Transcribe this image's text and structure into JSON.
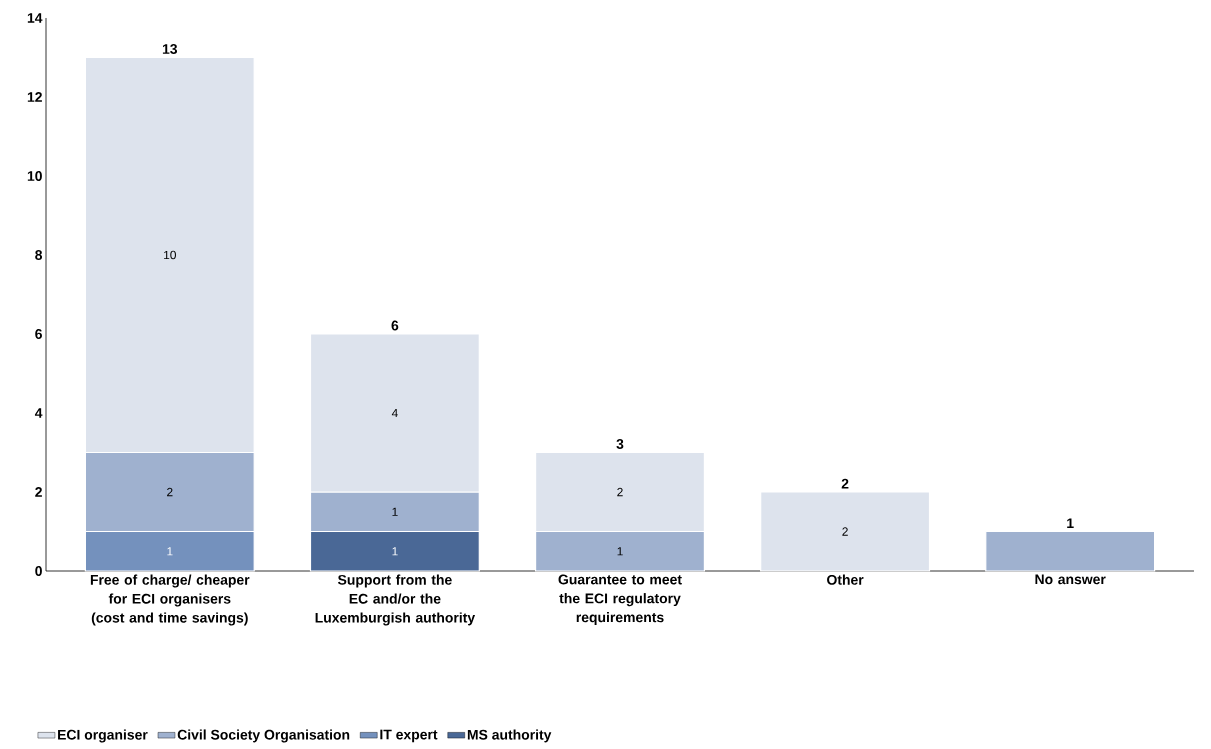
{
  "chart_data": {
    "type": "bar",
    "stacked": true,
    "categories": [
      "Free of charge/ cheaper for ECI organisers (cost and time savings)",
      "Support from the EC and/or the Luxemburgish authority",
      "Guarantee to meet the ECI regulatory requirements",
      "Other",
      "No answer"
    ],
    "series": [
      {
        "name": "MS authority",
        "color": "#4a6896",
        "values": [
          null,
          1,
          null,
          null,
          null
        ],
        "value_labels": [
          null,
          "1",
          null,
          null,
          null
        ]
      },
      {
        "name": "IT expert",
        "color": "#7491bd",
        "values": [
          1,
          null,
          null,
          null,
          null
        ],
        "value_labels": [
          "1",
          null,
          null,
          null,
          null
        ]
      },
      {
        "name": "Civil Society Organisation",
        "color": "#9fb1cf",
        "values": [
          2,
          1,
          1,
          null,
          1
        ],
        "value_labels": [
          "2",
          "1",
          "1",
          null,
          null
        ]
      },
      {
        "name": "ECI organiser",
        "color": "#dde3ed",
        "values": [
          10,
          4,
          2,
          2,
          null
        ],
        "value_labels": [
          "10",
          "4",
          "2",
          "2",
          null
        ]
      }
    ],
    "totals": [
      "13",
      "6",
      "3",
      "2",
      "1"
    ],
    "ylim": [
      0,
      14
    ],
    "yticks": [
      0,
      2,
      4,
      6,
      8,
      10,
      12,
      14
    ],
    "legend": "bottom"
  }
}
